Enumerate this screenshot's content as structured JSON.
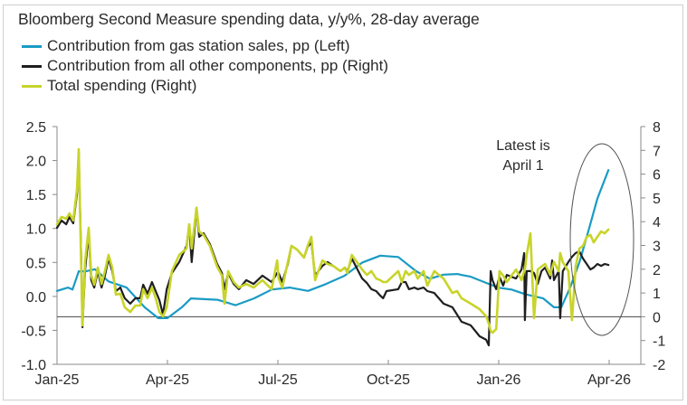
{
  "chart_data": {
    "type": "line",
    "title": "Bloomberg Second Measure spending data, y/y%, 28-day average",
    "xlabel": "",
    "x_unit": "months since Jan-25",
    "x_ticks": [
      {
        "t": 0,
        "label": "Jan-25"
      },
      {
        "t": 3,
        "label": "Apr-25"
      },
      {
        "t": 6,
        "label": "Jul-25"
      },
      {
        "t": 9,
        "label": "Oct-25"
      },
      {
        "t": 12,
        "label": "Jan-26"
      },
      {
        "t": 15,
        "label": "Apr-26"
      }
    ],
    "xlim": [
      0,
      15
    ],
    "left_axis": {
      "ylim": [
        -1.0,
        2.5
      ],
      "ticks": [
        "2.5",
        "2.0",
        "1.5",
        "1.0",
        "0.5",
        "0.0",
        "-0.5",
        "-1.0"
      ],
      "tick_values": [
        2.5,
        2.0,
        1.5,
        1.0,
        0.5,
        0.0,
        -0.5,
        -1.0
      ]
    },
    "right_axis": {
      "ylim": [
        -2,
        8
      ],
      "ticks": [
        "8",
        "7",
        "6",
        "5",
        "4",
        "3",
        "2",
        "1",
        "0",
        "-1",
        "-2"
      ],
      "tick_values": [
        8,
        7,
        6,
        5,
        4,
        3,
        2,
        1,
        0,
        -1,
        -2
      ]
    },
    "zero_line_axis": "right",
    "grid": false,
    "legend_position": "top-left",
    "annotation": {
      "lines": [
        "Latest is",
        "April 1"
      ],
      "t": 12.3,
      "highlight": "ellipse around latest values"
    },
    "series": [
      {
        "name": "Contribution from gas station sales, pp (Left)",
        "axis": "left",
        "color": "#1a9bc4",
        "t": [
          0,
          0.3,
          0.42,
          0.59,
          0.79,
          1.03,
          1.4,
          1.89,
          2.38,
          2.75,
          3.0,
          3.39,
          3.64,
          4.36,
          4.85,
          5.35,
          5.83,
          6.32,
          6.82,
          7.3,
          7.8,
          8.3,
          8.78,
          9.27,
          9.76,
          10.13,
          10.5,
          10.87,
          11.24,
          11.61,
          11.98,
          12.35,
          12.73,
          13.21,
          13.5,
          13.7,
          13.94,
          14.19,
          14.44,
          14.68,
          14.98
        ],
        "values": [
          0.08,
          0.13,
          0.1,
          0.37,
          0.37,
          0.4,
          0.22,
          0.13,
          -0.16,
          -0.32,
          -0.32,
          -0.16,
          -0.03,
          -0.05,
          -0.13,
          -0.03,
          0.1,
          0.13,
          0.08,
          0.18,
          0.3,
          0.5,
          0.6,
          0.58,
          0.37,
          0.26,
          0.32,
          0.33,
          0.29,
          0.21,
          0.13,
          0.1,
          0.03,
          -0.03,
          -0.16,
          -0.16,
          0.13,
          0.5,
          0.97,
          1.44,
          1.86
        ]
      },
      {
        "name": "Contribution from all other components, pp (Right)",
        "axis": "right",
        "color": "#1f1f1f",
        "t": [
          0,
          0.12,
          0.25,
          0.34,
          0.44,
          0.54,
          0.59,
          0.66,
          0.69,
          0.76,
          0.86,
          0.93,
          1.01,
          1.11,
          1.21,
          1.3,
          1.4,
          1.5,
          1.6,
          1.72,
          1.84,
          1.99,
          2.13,
          2.26,
          2.34,
          2.46,
          2.58,
          2.68,
          2.78,
          2.88,
          2.98,
          3.12,
          3.32,
          3.52,
          3.59,
          3.66,
          3.79,
          3.86,
          3.98,
          4.15,
          4.35,
          4.48,
          4.55,
          4.65,
          4.8,
          4.94,
          5.14,
          5.34,
          5.58,
          5.83,
          5.98,
          6.02,
          6.12,
          6.27,
          6.37,
          6.52,
          6.71,
          6.81,
          6.91,
          7.01,
          7.21,
          7.35,
          7.5,
          7.7,
          7.82,
          7.89,
          8.01,
          8.29,
          8.29,
          8.42,
          8.54,
          8.67,
          8.78,
          8.86,
          8.95,
          9.27,
          9.37,
          9.47,
          9.56,
          9.71,
          9.8,
          9.96,
          10.06,
          10.25,
          10.5,
          10.74,
          10.87,
          10.99,
          11.24,
          11.48,
          11.66,
          11.73,
          11.78,
          11.83,
          11.93,
          12.02,
          12.12,
          12.22,
          12.47,
          12.62,
          12.69,
          12.71,
          12.76,
          12.86,
          12.96,
          13.06,
          13.16,
          13.26,
          13.4,
          13.45,
          13.5,
          13.63,
          13.67,
          13.74,
          13.89,
          13.99,
          14.09,
          14.19,
          14.29,
          14.39,
          14.49,
          14.58,
          14.68,
          14.78,
          14.88,
          14.98
        ],
        "values": [
          3.74,
          4.05,
          3.89,
          4.2,
          3.93,
          5.15,
          6.94,
          2.3,
          -0.44,
          1.92,
          3.51,
          1.54,
          1.23,
          1.92,
          1.23,
          1.73,
          2.45,
          1.92,
          1.08,
          1.23,
          0.78,
          0.55,
          0.78,
          0.78,
          1.35,
          0.97,
          1.46,
          1.08,
          0.7,
          0.09,
          1.16,
          1.84,
          2.3,
          2.98,
          3.82,
          2.3,
          4.58,
          3.36,
          3.51,
          3.06,
          2.22,
          1.84,
          1.16,
          1.84,
          1.38,
          1.16,
          1.54,
          1.38,
          1.73,
          1.46,
          1.84,
          1.84,
          1.46,
          2.22,
          2.98,
          2.83,
          2.49,
          2.94,
          3.13,
          1.73,
          2.14,
          2.3,
          2.14,
          1.92,
          2.07,
          1.92,
          2.45,
          1.61,
          1.61,
          1.42,
          1.16,
          1.08,
          0.89,
          0.78,
          1.08,
          1.16,
          1.46,
          1.46,
          1.16,
          1.23,
          1.16,
          1.23,
          1.08,
          1.0,
          0.55,
          0.4,
          0.09,
          -0.21,
          -0.36,
          -0.82,
          -0.97,
          -1.2,
          1.92,
          1.54,
          1.16,
          1.69,
          1.31,
          1.76,
          1.61,
          1.99,
          2.68,
          -0.14,
          1.92,
          1.92,
          1.84,
          1.38,
          1.92,
          2.07,
          1.61,
          2.37,
          1.54,
          1.92,
          -0.06,
          1.92,
          2.3,
          2.52,
          2.68,
          2.75,
          2.45,
          2.22,
          1.99,
          2.07,
          2.22,
          2.14,
          2.22,
          2.18
        ]
      },
      {
        "name": "Total spending (Right)",
        "axis": "right",
        "color": "#c8d42a",
        "t": [
          0,
          0.12,
          0.25,
          0.34,
          0.44,
          0.54,
          0.59,
          0.66,
          0.69,
          0.76,
          0.86,
          0.93,
          1.01,
          1.11,
          1.21,
          1.3,
          1.4,
          1.5,
          1.6,
          1.72,
          1.84,
          1.99,
          2.13,
          2.26,
          2.34,
          2.46,
          2.58,
          2.68,
          2.78,
          2.88,
          2.98,
          3.12,
          3.32,
          3.52,
          3.59,
          3.66,
          3.79,
          3.86,
          3.98,
          4.15,
          4.35,
          4.48,
          4.55,
          4.65,
          4.8,
          4.94,
          5.14,
          5.34,
          5.58,
          5.83,
          5.98,
          6.02,
          6.12,
          6.27,
          6.37,
          6.52,
          6.71,
          6.81,
          6.91,
          7.01,
          7.21,
          7.35,
          7.5,
          7.7,
          7.82,
          7.89,
          8.01,
          8.29,
          8.29,
          8.42,
          8.54,
          8.67,
          8.78,
          8.86,
          8.95,
          9.27,
          9.37,
          9.47,
          9.56,
          9.71,
          9.8,
          9.96,
          10.06,
          10.25,
          10.5,
          10.74,
          10.87,
          10.99,
          11.24,
          11.48,
          11.66,
          11.73,
          11.78,
          11.83,
          11.93,
          12.02,
          12.12,
          12.22,
          12.47,
          12.62,
          12.69,
          12.71,
          12.76,
          12.86,
          12.96,
          13.06,
          13.16,
          13.26,
          13.4,
          13.45,
          13.5,
          13.63,
          13.67,
          13.74,
          13.89,
          13.99,
          14.09,
          14.19,
          14.29,
          14.39,
          14.49,
          14.58,
          14.68,
          14.78,
          14.88,
          14.98
        ],
        "values": [
          3.89,
          4.2,
          4.12,
          4.35,
          4.05,
          5.34,
          7.05,
          1.92,
          -0.36,
          2.3,
          3.74,
          1.73,
          1.35,
          2.07,
          1.38,
          1.92,
          2.6,
          2.07,
          0.93,
          0.97,
          0.4,
          0.2,
          0.47,
          0.47,
          1.16,
          0.78,
          1.23,
          0.78,
          0.2,
          0.01,
          0.4,
          1.92,
          2.6,
          2.87,
          3.89,
          2.87,
          4.58,
          3.59,
          3.44,
          2.98,
          2.11,
          1.73,
          0.55,
          1.92,
          1.46,
          1.23,
          1.38,
          1.23,
          1.54,
          1.16,
          2.37,
          1.61,
          1.23,
          2.3,
          2.98,
          2.83,
          2.49,
          2.98,
          3.36,
          1.54,
          2.37,
          2.22,
          2.14,
          1.92,
          2.07,
          1.84,
          2.6,
          1.99,
          1.99,
          1.76,
          1.92,
          1.61,
          1.54,
          1.46,
          1.46,
          1.92,
          1.46,
          1.92,
          1.76,
          1.92,
          1.61,
          1.92,
          1.31,
          1.92,
          1.61,
          1.0,
          1.08,
          0.78,
          0.55,
          0.32,
          0.01,
          -0.29,
          -0.59,
          -0.67,
          -0.52,
          1.92,
          1.73,
          1.46,
          1.99,
          1.54,
          1.92,
          1.99,
          2.6,
          3.51,
          -0.06,
          1.99,
          2.11,
          2.22,
          1.76,
          2.07,
          2.3,
          1.92,
          2.68,
          2.3,
          1.92,
          -0.14,
          2.11,
          2.87,
          2.98,
          3.36,
          3.44,
          3.13,
          3.36,
          3.59,
          3.51,
          3.67,
          3.74,
          3.82,
          3.89
        ]
      }
    ]
  }
}
